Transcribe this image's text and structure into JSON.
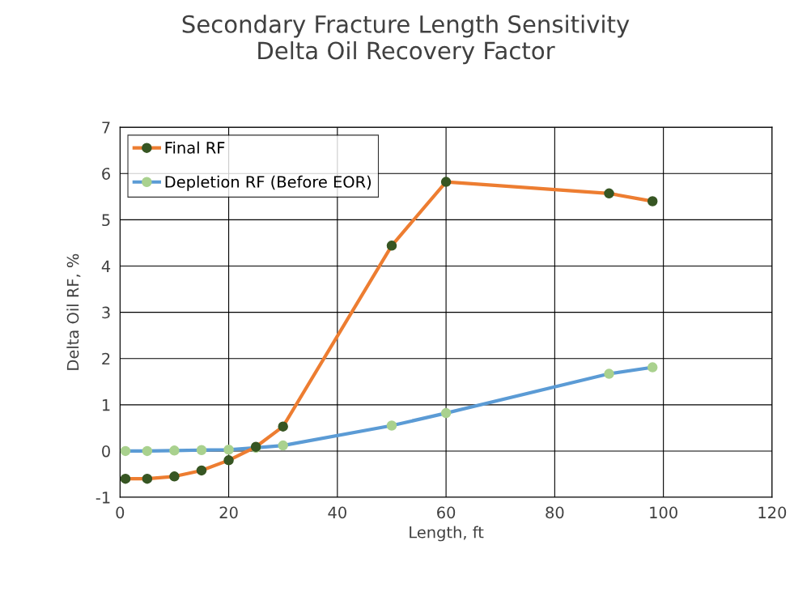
{
  "chart_data": {
    "type": "line",
    "title": "Secondary Fracture Length Sensitivity\nDelta Oil Recovery Factor",
    "xlabel": "Length, ft",
    "ylabel": "Delta Oil RF, %",
    "x": [
      1,
      5,
      10,
      15,
      20,
      25,
      30,
      50,
      60,
      90,
      98
    ],
    "series": [
      {
        "name": "Final RF",
        "color": "#ed7d31",
        "values": [
          -0.6,
          -0.6,
          -0.55,
          -0.42,
          -0.2,
          0.09,
          0.53,
          4.44,
          5.82,
          5.57,
          5.4
        ]
      },
      {
        "name": "Depletion RF (Before EOR)",
        "color": "#5b9bd5",
        "values": [
          0,
          0,
          0.01,
          0.02,
          0.03,
          0.07,
          0.12,
          0.55,
          0.82,
          1.67,
          1.81
        ]
      }
    ],
    "xlim": [
      0,
      120
    ],
    "xticks": [
      0,
      20,
      40,
      60,
      80,
      100,
      120
    ],
    "ylim": [
      -1,
      7
    ],
    "yticks": [
      -1,
      0,
      1,
      2,
      3,
      4,
      5,
      6,
      7
    ],
    "grid": true,
    "legend": "top left",
    "marker": "circle",
    "line_style": "solid"
  }
}
